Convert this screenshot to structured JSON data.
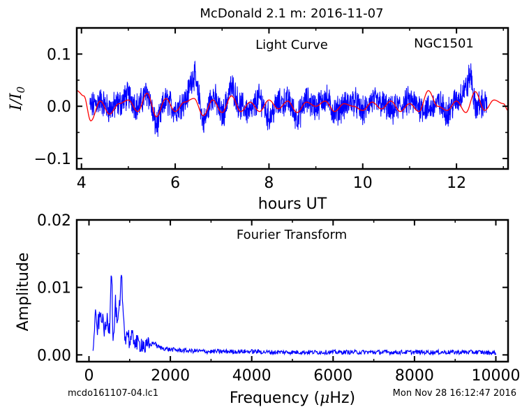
{
  "figure": {
    "title": "McDonald 2.1 m:  2016-11-07",
    "footer_left": "mcdo161107-04.lc1",
    "footer_right": "Mon Nov 28 16:12:47 2016"
  },
  "colors": {
    "data": "#0000ff",
    "model": "#ff0000",
    "axes": "#000000"
  },
  "chart_data": [
    {
      "type": "line",
      "panel": "light-curve",
      "annotation": "Light Curve",
      "object": "NGC1501",
      "xlabel": "hours UT",
      "ylabel": "I/I0",
      "xlim": [
        3.9,
        13.1
      ],
      "ylim": [
        -0.12,
        0.15
      ],
      "xticks": [
        4,
        6,
        8,
        10,
        12
      ],
      "yticks": [
        -0.1,
        0.0,
        0.1
      ],
      "xtick_labels": [
        "4",
        "6",
        "8",
        "10",
        "12"
      ],
      "ytick_labels": [
        "−0.1",
        "0.0",
        "0.1"
      ],
      "data_range_x": [
        4.18,
        12.65
      ],
      "series": [
        {
          "role": "observations",
          "color": "#0000ff",
          "x": [
            4.2,
            4.4,
            4.6,
            4.8,
            5.0,
            5.2,
            5.4,
            5.6,
            5.8,
            6.0,
            6.2,
            6.4,
            6.5,
            6.6,
            6.8,
            7.0,
            7.2,
            7.4,
            7.6,
            7.8,
            8.0,
            8.2,
            8.4,
            8.6,
            8.8,
            9.0,
            9.2,
            9.4,
            9.6,
            9.8,
            10.0,
            10.2,
            10.4,
            10.6,
            10.8,
            11.0,
            11.2,
            11.4,
            11.6,
            11.8,
            12.0,
            12.2,
            12.3,
            12.4,
            12.6
          ],
          "y": [
            0.0,
            0.01,
            -0.005,
            0.005,
            0.02,
            0.0,
            0.025,
            -0.035,
            0.01,
            -0.005,
            0.01,
            0.06,
            0.02,
            -0.03,
            0.02,
            -0.015,
            0.035,
            0.0,
            -0.01,
            0.015,
            -0.02,
            0.005,
            0.01,
            -0.02,
            0.01,
            0.0,
            0.015,
            -0.01,
            0.0,
            0.01,
            -0.01,
            0.01,
            0.005,
            -0.01,
            0.0,
            0.01,
            0.0,
            -0.005,
            0.005,
            -0.01,
            0.01,
            0.035,
            0.06,
            0.0,
            0.005
          ]
        },
        {
          "role": "model",
          "color": "#ff0000",
          "x": [
            3.9,
            4.05,
            4.2,
            4.4,
            4.6,
            4.8,
            5.0,
            5.2,
            5.4,
            5.6,
            5.8,
            6.0,
            6.2,
            6.4,
            6.6,
            6.8,
            7.0,
            7.2,
            7.4,
            7.6,
            7.8,
            8.0,
            8.2,
            8.4,
            8.6,
            8.8,
            9.0,
            9.2,
            9.4,
            9.6,
            9.8,
            10.0,
            10.2,
            10.4,
            10.6,
            10.8,
            11.0,
            11.2,
            11.4,
            11.6,
            11.8,
            12.0,
            12.2,
            12.4,
            12.6,
            12.8,
            13.0,
            13.1
          ],
          "y": [
            0.03,
            0.02,
            -0.028,
            0.01,
            -0.015,
            0.005,
            0.012,
            -0.01,
            0.025,
            -0.02,
            0.015,
            -0.01,
            0.008,
            0.015,
            -0.018,
            0.012,
            -0.012,
            0.02,
            -0.01,
            0.008,
            -0.01,
            0.012,
            -0.005,
            0.01,
            -0.012,
            0.008,
            0.0,
            0.01,
            -0.01,
            0.005,
            0.0,
            -0.008,
            0.008,
            -0.005,
            0.01,
            -0.01,
            0.005,
            -0.01,
            0.03,
            0.0,
            -0.008,
            0.01,
            -0.012,
            0.028,
            -0.008,
            0.012,
            0.005,
            -0.008
          ]
        }
      ]
    },
    {
      "type": "line",
      "panel": "fourier-transform",
      "annotation": "Fourier Transform",
      "xlabel": "Frequency (μHz)",
      "ylabel": "Amplitude",
      "xlim": [
        -300,
        10300
      ],
      "ylim": [
        -0.001,
        0.02
      ],
      "xticks": [
        0,
        2000,
        4000,
        6000,
        8000,
        10000
      ],
      "yticks": [
        0.0,
        0.01,
        0.02
      ],
      "xtick_labels": [
        "0",
        "2000",
        "4000",
        "6000",
        "8000",
        "10000"
      ],
      "ytick_labels": [
        "0.00",
        "0.01",
        "0.02"
      ],
      "series": [
        {
          "role": "amplitude",
          "color": "#0000ff",
          "x": [
            100,
            150,
            200,
            250,
            300,
            350,
            400,
            450,
            500,
            550,
            600,
            650,
            700,
            750,
            800,
            850,
            900,
            950,
            1000,
            1100,
            1200,
            1300,
            1400,
            1500,
            1600,
            1700,
            1800,
            2000,
            2200,
            2500,
            3000,
            3500,
            4000,
            4500,
            5000,
            5500,
            6000,
            6500,
            7000,
            7500,
            8000,
            8500,
            9000,
            9500,
            10000
          ],
          "y": [
            0.0,
            0.0055,
            0.004,
            0.005,
            0.0062,
            0.0045,
            0.0035,
            0.0052,
            0.004,
            0.0128,
            0.002,
            0.0075,
            0.004,
            0.0068,
            0.011,
            0.0055,
            0.0025,
            0.0035,
            0.002,
            0.0025,
            0.0015,
            0.0018,
            0.001,
            0.0015,
            0.0018,
            0.0012,
            0.001,
            0.0008,
            0.0007,
            0.0006,
            0.0005,
            0.0005,
            0.0005,
            0.0004,
            0.0004,
            0.0004,
            0.0004,
            0.0004,
            0.0004,
            0.0004,
            0.0004,
            0.0004,
            0.0004,
            0.0004,
            0.0003
          ]
        }
      ]
    }
  ]
}
